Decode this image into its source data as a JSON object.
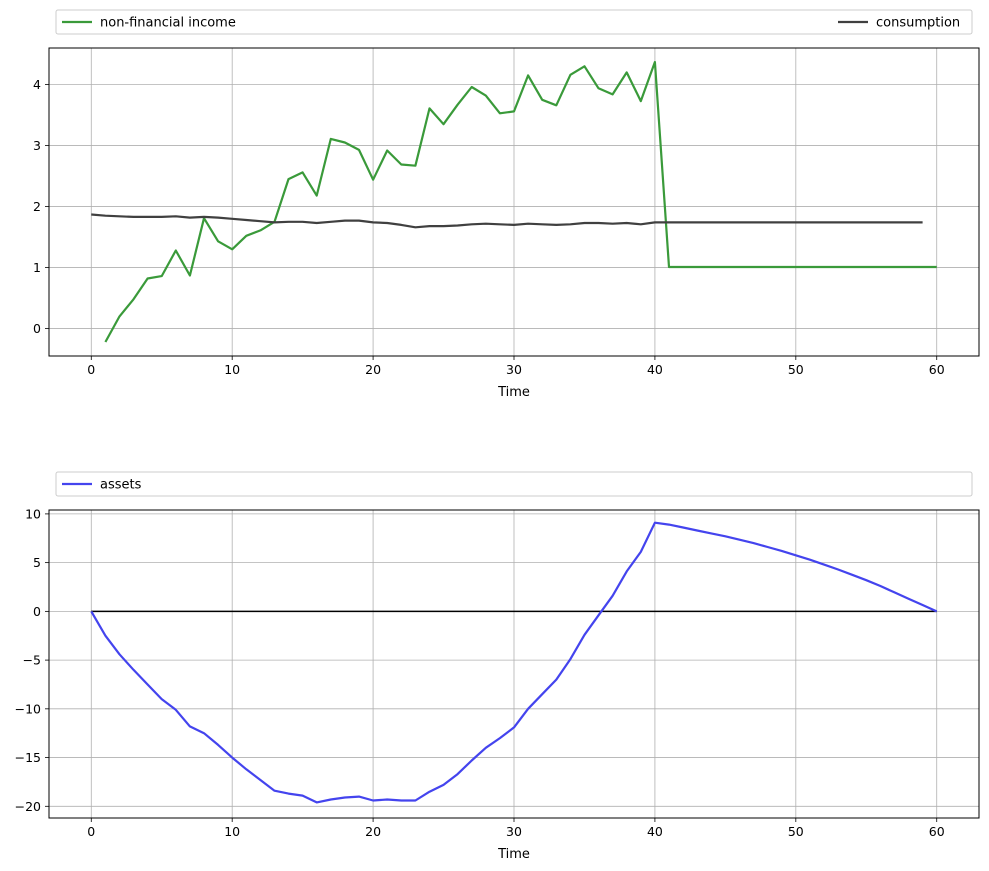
{
  "chart_data": [
    {
      "type": "line",
      "title": "",
      "xlabel": "Time",
      "ylabel": "",
      "xlim": [
        -3,
        63
      ],
      "ylim": [
        -0.45,
        4.6
      ],
      "xticks": [
        0,
        10,
        20,
        30,
        40,
        50,
        60
      ],
      "yticks": [
        0,
        1,
        2,
        3,
        4
      ],
      "grid": true,
      "legend": {
        "placement": "above plot, expanded across full width"
      },
      "series": [
        {
          "name": "non-financial income",
          "color": "#3a9a3a",
          "x": [
            1,
            2,
            3,
            4,
            5,
            6,
            7,
            8,
            9,
            10,
            11,
            12,
            13,
            14,
            15,
            16,
            17,
            18,
            19,
            20,
            21,
            22,
            23,
            24,
            25,
            26,
            27,
            28,
            29,
            30,
            31,
            32,
            33,
            34,
            35,
            36,
            37,
            38,
            39,
            40,
            41,
            42,
            43,
            44,
            45,
            46,
            47,
            48,
            49,
            50,
            51,
            52,
            53,
            54,
            55,
            56,
            57,
            58,
            59,
            60
          ],
          "y": [
            -0.22,
            0.2,
            0.48,
            0.82,
            0.86,
            1.28,
            0.87,
            1.81,
            1.43,
            1.3,
            1.52,
            1.61,
            1.75,
            2.45,
            2.56,
            2.18,
            3.11,
            3.05,
            2.93,
            2.44,
            2.92,
            2.69,
            2.67,
            3.61,
            3.35,
            3.67,
            3.96,
            3.82,
            3.53,
            3.56,
            4.15,
            3.75,
            3.66,
            4.16,
            4.3,
            3.94,
            3.84,
            4.2,
            3.73,
            4.37,
            1.01,
            1.01,
            1.01,
            1.01,
            1.01,
            1.01,
            1.01,
            1.01,
            1.01,
            1.01,
            1.01,
            1.01,
            1.01,
            1.01,
            1.01,
            1.01,
            1.01,
            1.01,
            1.01,
            1.01
          ]
        },
        {
          "name": "consumption",
          "color": "#404040",
          "x": [
            0,
            1,
            2,
            3,
            4,
            5,
            6,
            7,
            8,
            9,
            10,
            11,
            12,
            13,
            14,
            15,
            16,
            17,
            18,
            19,
            20,
            21,
            22,
            23,
            24,
            25,
            26,
            27,
            28,
            29,
            30,
            31,
            32,
            33,
            34,
            35,
            36,
            37,
            38,
            39,
            40,
            41,
            42,
            43,
            44,
            45,
            46,
            47,
            48,
            49,
            50,
            51,
            52,
            53,
            54,
            55,
            56,
            57,
            58,
            59
          ],
          "y": [
            1.87,
            1.85,
            1.84,
            1.83,
            1.83,
            1.83,
            1.84,
            1.82,
            1.83,
            1.82,
            1.8,
            1.78,
            1.76,
            1.74,
            1.75,
            1.75,
            1.73,
            1.75,
            1.77,
            1.77,
            1.74,
            1.73,
            1.7,
            1.66,
            1.68,
            1.68,
            1.69,
            1.71,
            1.72,
            1.71,
            1.7,
            1.72,
            1.71,
            1.7,
            1.71,
            1.73,
            1.73,
            1.72,
            1.73,
            1.71,
            1.74,
            1.74,
            1.74,
            1.74,
            1.74,
            1.74,
            1.74,
            1.74,
            1.74,
            1.74,
            1.74,
            1.74,
            1.74,
            1.74,
            1.74,
            1.74,
            1.74,
            1.74,
            1.74,
            1.74
          ]
        }
      ]
    },
    {
      "type": "line",
      "title": "",
      "xlabel": "Time",
      "ylabel": "",
      "xlim": [
        -3,
        63
      ],
      "ylim": [
        -21.2,
        10.4
      ],
      "xticks": [
        0,
        10,
        20,
        30,
        40,
        50,
        60
      ],
      "yticks": [
        -20,
        -15,
        -10,
        -5,
        0,
        5,
        10
      ],
      "grid": true,
      "legend": {
        "placement": "above plot, expanded across full width"
      },
      "reference_line": {
        "y": 0,
        "x": [
          0,
          60
        ],
        "color": "#000000"
      },
      "series": [
        {
          "name": "assets",
          "color": "#4444ee",
          "x": [
            0,
            1,
            2,
            3,
            4,
            5,
            6,
            7,
            8,
            9,
            10,
            11,
            12,
            13,
            14,
            15,
            16,
            17,
            18,
            19,
            20,
            21,
            22,
            23,
            24,
            25,
            26,
            27,
            28,
            29,
            30,
            31,
            32,
            33,
            34,
            35,
            36,
            37,
            38,
            39,
            40,
            41,
            42,
            43,
            44,
            45,
            46,
            47,
            48,
            49,
            50,
            51,
            52,
            53,
            54,
            55,
            56,
            57,
            58,
            59,
            60
          ],
          "y": [
            0,
            -2.5,
            -4.4,
            -6.0,
            -7.5,
            -9.0,
            -10.1,
            -11.8,
            -12.5,
            -13.7,
            -15.0,
            -16.2,
            -17.3,
            -18.4,
            -18.7,
            -18.9,
            -19.6,
            -19.3,
            -19.1,
            -19.0,
            -19.4,
            -19.3,
            -19.4,
            -19.4,
            -18.5,
            -17.8,
            -16.7,
            -15.3,
            -14.0,
            -13.0,
            -11.9,
            -10.0,
            -8.5,
            -7.0,
            -4.9,
            -2.4,
            -0.4,
            1.6,
            4.1,
            6.1,
            9.1,
            8.9,
            8.6,
            8.3,
            8.0,
            7.7,
            7.35,
            7.0,
            6.6,
            6.2,
            5.75,
            5.3,
            4.8,
            4.3,
            3.75,
            3.2,
            2.6,
            1.95,
            1.3,
            0.65,
            0.0
          ]
        }
      ]
    }
  ]
}
